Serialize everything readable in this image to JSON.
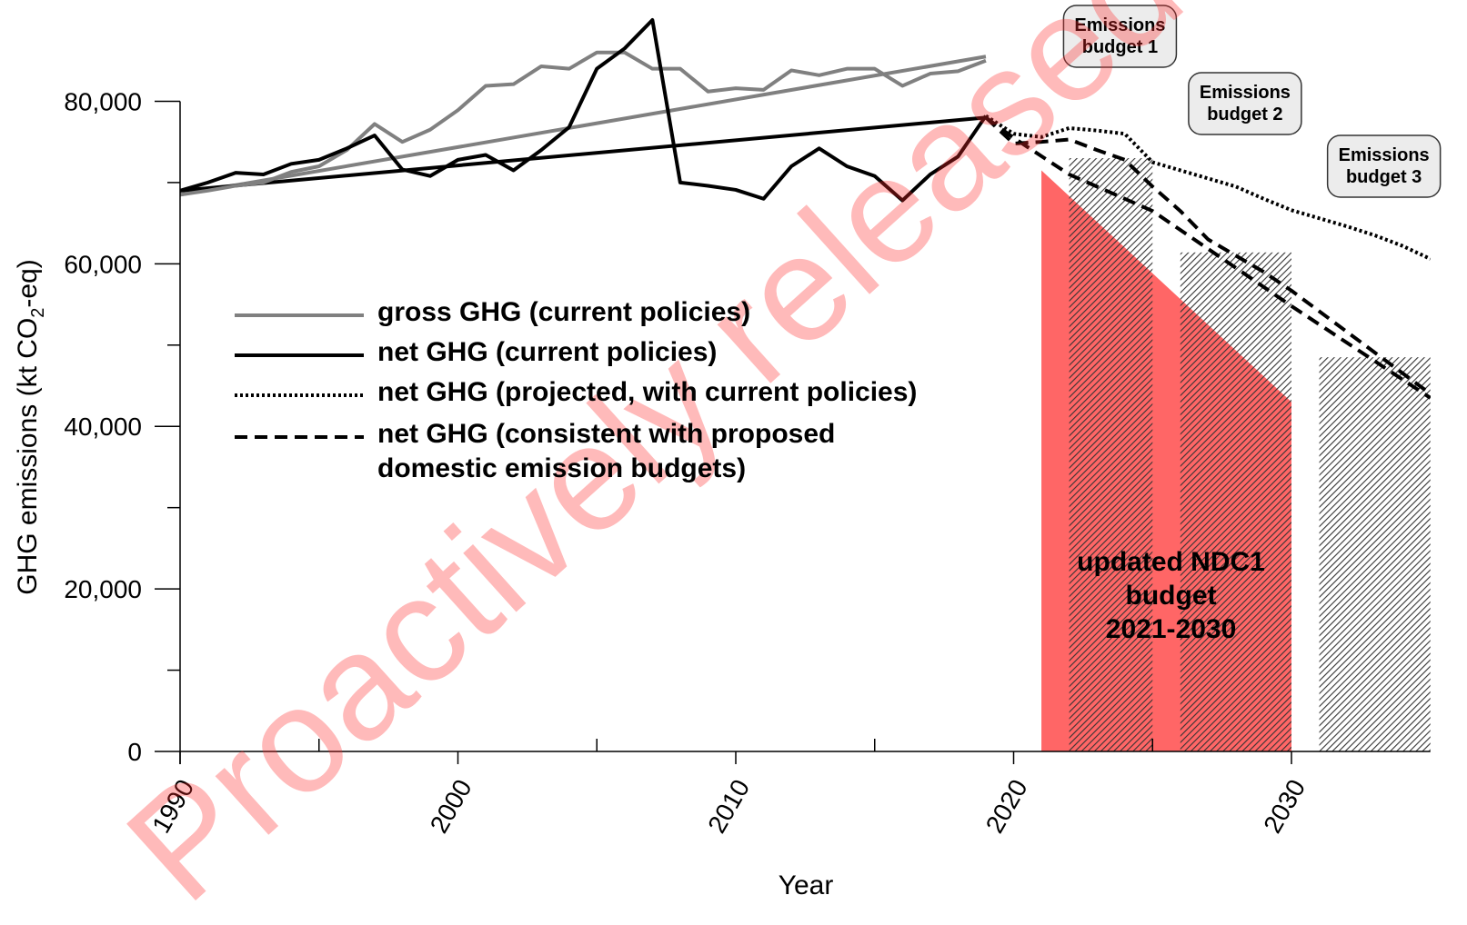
{
  "chart_data": {
    "type": "line",
    "x_label": "Year",
    "y_label": [
      "GHG emissions (kt CO",
      "2",
      "-eq)"
    ],
    "xlim": [
      1990,
      2035
    ],
    "ylim": [
      0,
      90000
    ],
    "xticks": [
      1990,
      2000,
      2010,
      2020,
      2030
    ],
    "xminor_ticks": [
      1995,
      2005,
      2015,
      2025
    ],
    "yticks": [
      {
        "value": 0,
        "label": "0"
      },
      {
        "value": 20000,
        "label": "20,000"
      },
      {
        "value": 40000,
        "label": "40,000"
      },
      {
        "value": 60000,
        "label": "60,000"
      },
      {
        "value": 80000,
        "label": "80,000"
      }
    ],
    "yminor_ticks": [
      10000,
      30000,
      50000,
      70000
    ],
    "series": [
      {
        "name": "gross GHG (current policies)",
        "color": "#808080",
        "style": "solid",
        "x": [
          1990,
          1991,
          1992,
          1993,
          1994,
          1995,
          1996,
          1997,
          1998,
          1999,
          2000,
          2001,
          2002,
          2003,
          2004,
          2005,
          2006,
          2007,
          2008,
          2009,
          2010,
          2011,
          2012,
          2013,
          2014,
          2015,
          2016,
          2017,
          2018,
          2019
        ],
        "values": [
          68500,
          69000,
          69600,
          70000,
          71300,
          72000,
          74000,
          77200,
          75000,
          76500,
          78900,
          81900,
          82100,
          84300,
          84000,
          86000,
          86000,
          84000,
          84000,
          81200,
          81600,
          81400,
          83800,
          83200,
          84000,
          84000,
          81900,
          83400,
          83700,
          85000
        ]
      },
      {
        "name": "net GHG (current policies)",
        "color": "#000000",
        "style": "solid",
        "x": [
          1990,
          1991,
          1992,
          1993,
          1994,
          1995,
          1996,
          1997,
          1998,
          1999,
          2000,
          2001,
          2002,
          2003,
          2004,
          2005,
          2006,
          2007,
          2008,
          2009,
          2010,
          2011,
          2012,
          2013,
          2014,
          2015,
          2016,
          2017,
          2018,
          2019
        ],
        "values": [
          69000,
          70000,
          71200,
          71000,
          72300,
          72800,
          74200,
          75800,
          71600,
          70800,
          72800,
          73400,
          71500,
          74000,
          76800,
          84000,
          86500,
          90000,
          70000,
          69600,
          69100,
          68000,
          72000,
          74200,
          72000,
          70800,
          67800,
          71000,
          73200,
          78200
        ]
      },
      {
        "name": "net GHG (projected, with current policies)",
        "color": "#000000",
        "style": "dotted",
        "x": [
          2019,
          2020,
          2021,
          2022,
          2023,
          2024,
          2025,
          2026,
          2027,
          2028,
          2029,
          2030,
          2031,
          2032,
          2033,
          2034,
          2035
        ],
        "values": [
          78200,
          76000,
          75600,
          76700,
          76400,
          76000,
          72500,
          71500,
          70500,
          69500,
          68000,
          66600,
          65600,
          64600,
          63500,
          62200,
          60600
        ]
      },
      {
        "name": "net GHG (consistent with proposed domestic emission budgets)",
        "color": "#000000",
        "style": "dashed",
        "x": [
          2019,
          2020,
          2021,
          2022,
          2023,
          2024,
          2025,
          2026,
          2027,
          2028,
          2029,
          2030,
          2035
        ],
        "values": [
          78000,
          74800,
          75000,
          75300,
          74000,
          72800,
          69500,
          66500,
          63000,
          61000,
          59000,
          56700,
          44000
        ]
      },
      {
        "color": "#000000",
        "style": "dashed",
        "x": [
          2019,
          2020,
          2022,
          2025,
          2028,
          2030,
          2035
        ],
        "values": [
          78000,
          75500,
          71000,
          66500,
          59500,
          54800,
          43500
        ]
      }
    ],
    "trend_lines": [
      {
        "color": "#808080",
        "x": [
          1990,
          2019
        ],
        "values": [
          68500,
          85500
        ]
      },
      {
        "color": "#000000",
        "x": [
          1990,
          2019
        ],
        "values": [
          69000,
          78000
        ]
      }
    ],
    "ndc_area": {
      "color": "#ff6666",
      "x": [
        2021,
        2030
      ],
      "values": [
        71500,
        43000
      ],
      "label": [
        "updated NDC1",
        "budget",
        "2021-2030"
      ]
    },
    "budgets": [
      {
        "label": [
          "Emissions",
          "budget 1"
        ],
        "start": 2022,
        "end": 2025,
        "value": 73000
      },
      {
        "label": [
          "Emissions",
          "budget 2"
        ],
        "start": 2026,
        "end": 2030,
        "value": 61400
      },
      {
        "label": [
          "Emissions",
          "budget 3"
        ],
        "start": 2031,
        "end": 2035,
        "value": 48500
      }
    ],
    "watermark": "Proactively released"
  }
}
